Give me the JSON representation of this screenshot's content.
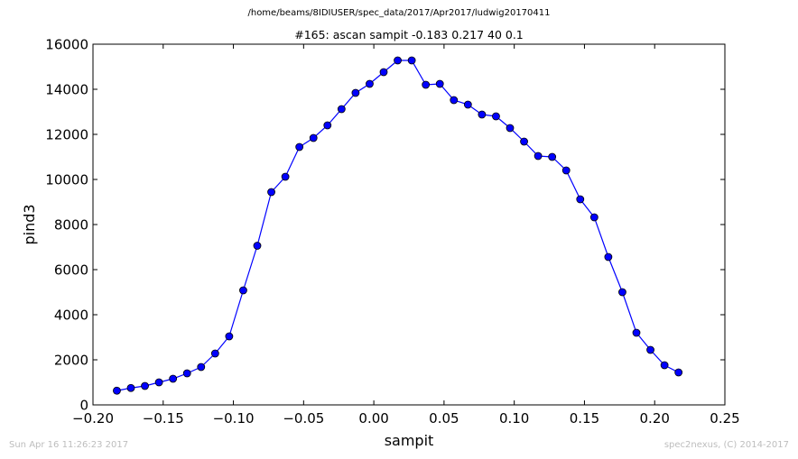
{
  "header": {
    "file_path": "/home/beams/8IDIUSER/spec_data/2017/Apr2017/ludwig20170411"
  },
  "footer": {
    "timestamp": "Sun Apr 16 11:26:23 2017",
    "credit": "spec2nexus, (C) 2014-2017"
  },
  "colors": {
    "series": "#0000ff",
    "marker_edge": "#000000",
    "footer_text": "#bdbdbd"
  },
  "chart_data": {
    "type": "line",
    "title": "#165: ascan  sampit -0.183 0.217  40 0.1",
    "xlabel": "sampit",
    "ylabel": "pind3",
    "xlim": [
      -0.2,
      0.25
    ],
    "ylim": [
      0,
      16000
    ],
    "xticks": [
      "−0.20",
      "−0.15",
      "−0.10",
      "−0.05",
      "0.00",
      "0.05",
      "0.10",
      "0.15",
      "0.20",
      "0.25"
    ],
    "yticks": [
      "0",
      "2000",
      "4000",
      "6000",
      "8000",
      "10000",
      "12000",
      "14000",
      "16000"
    ],
    "grid": false,
    "legend": "none",
    "markers": "circle",
    "series": [
      {
        "x": [
          -0.183,
          -0.173,
          -0.163,
          -0.153,
          -0.143,
          -0.133,
          -0.123,
          -0.113,
          -0.103,
          -0.093,
          -0.083,
          -0.073,
          -0.063,
          -0.053,
          -0.043,
          -0.033,
          -0.023,
          -0.013,
          -0.003,
          0.007,
          0.017,
          0.027,
          0.037,
          0.047,
          0.057,
          0.067,
          0.077,
          0.087,
          0.097,
          0.107,
          0.117,
          0.127,
          0.137,
          0.147,
          0.157,
          0.167,
          0.177,
          0.187,
          0.197,
          0.207,
          0.217
        ],
        "y": [
          630,
          750,
          840,
          1000,
          1160,
          1400,
          1680,
          2280,
          3040,
          5080,
          7060,
          9440,
          10120,
          11440,
          11840,
          12400,
          13120,
          13840,
          14240,
          14760,
          15280,
          15280,
          14200,
          14240,
          13520,
          13320,
          12880,
          12800,
          12280,
          11680,
          11040,
          11000,
          10400,
          9120,
          8320,
          6560,
          5000,
          3200,
          2440,
          1760,
          1440
        ]
      }
    ]
  }
}
